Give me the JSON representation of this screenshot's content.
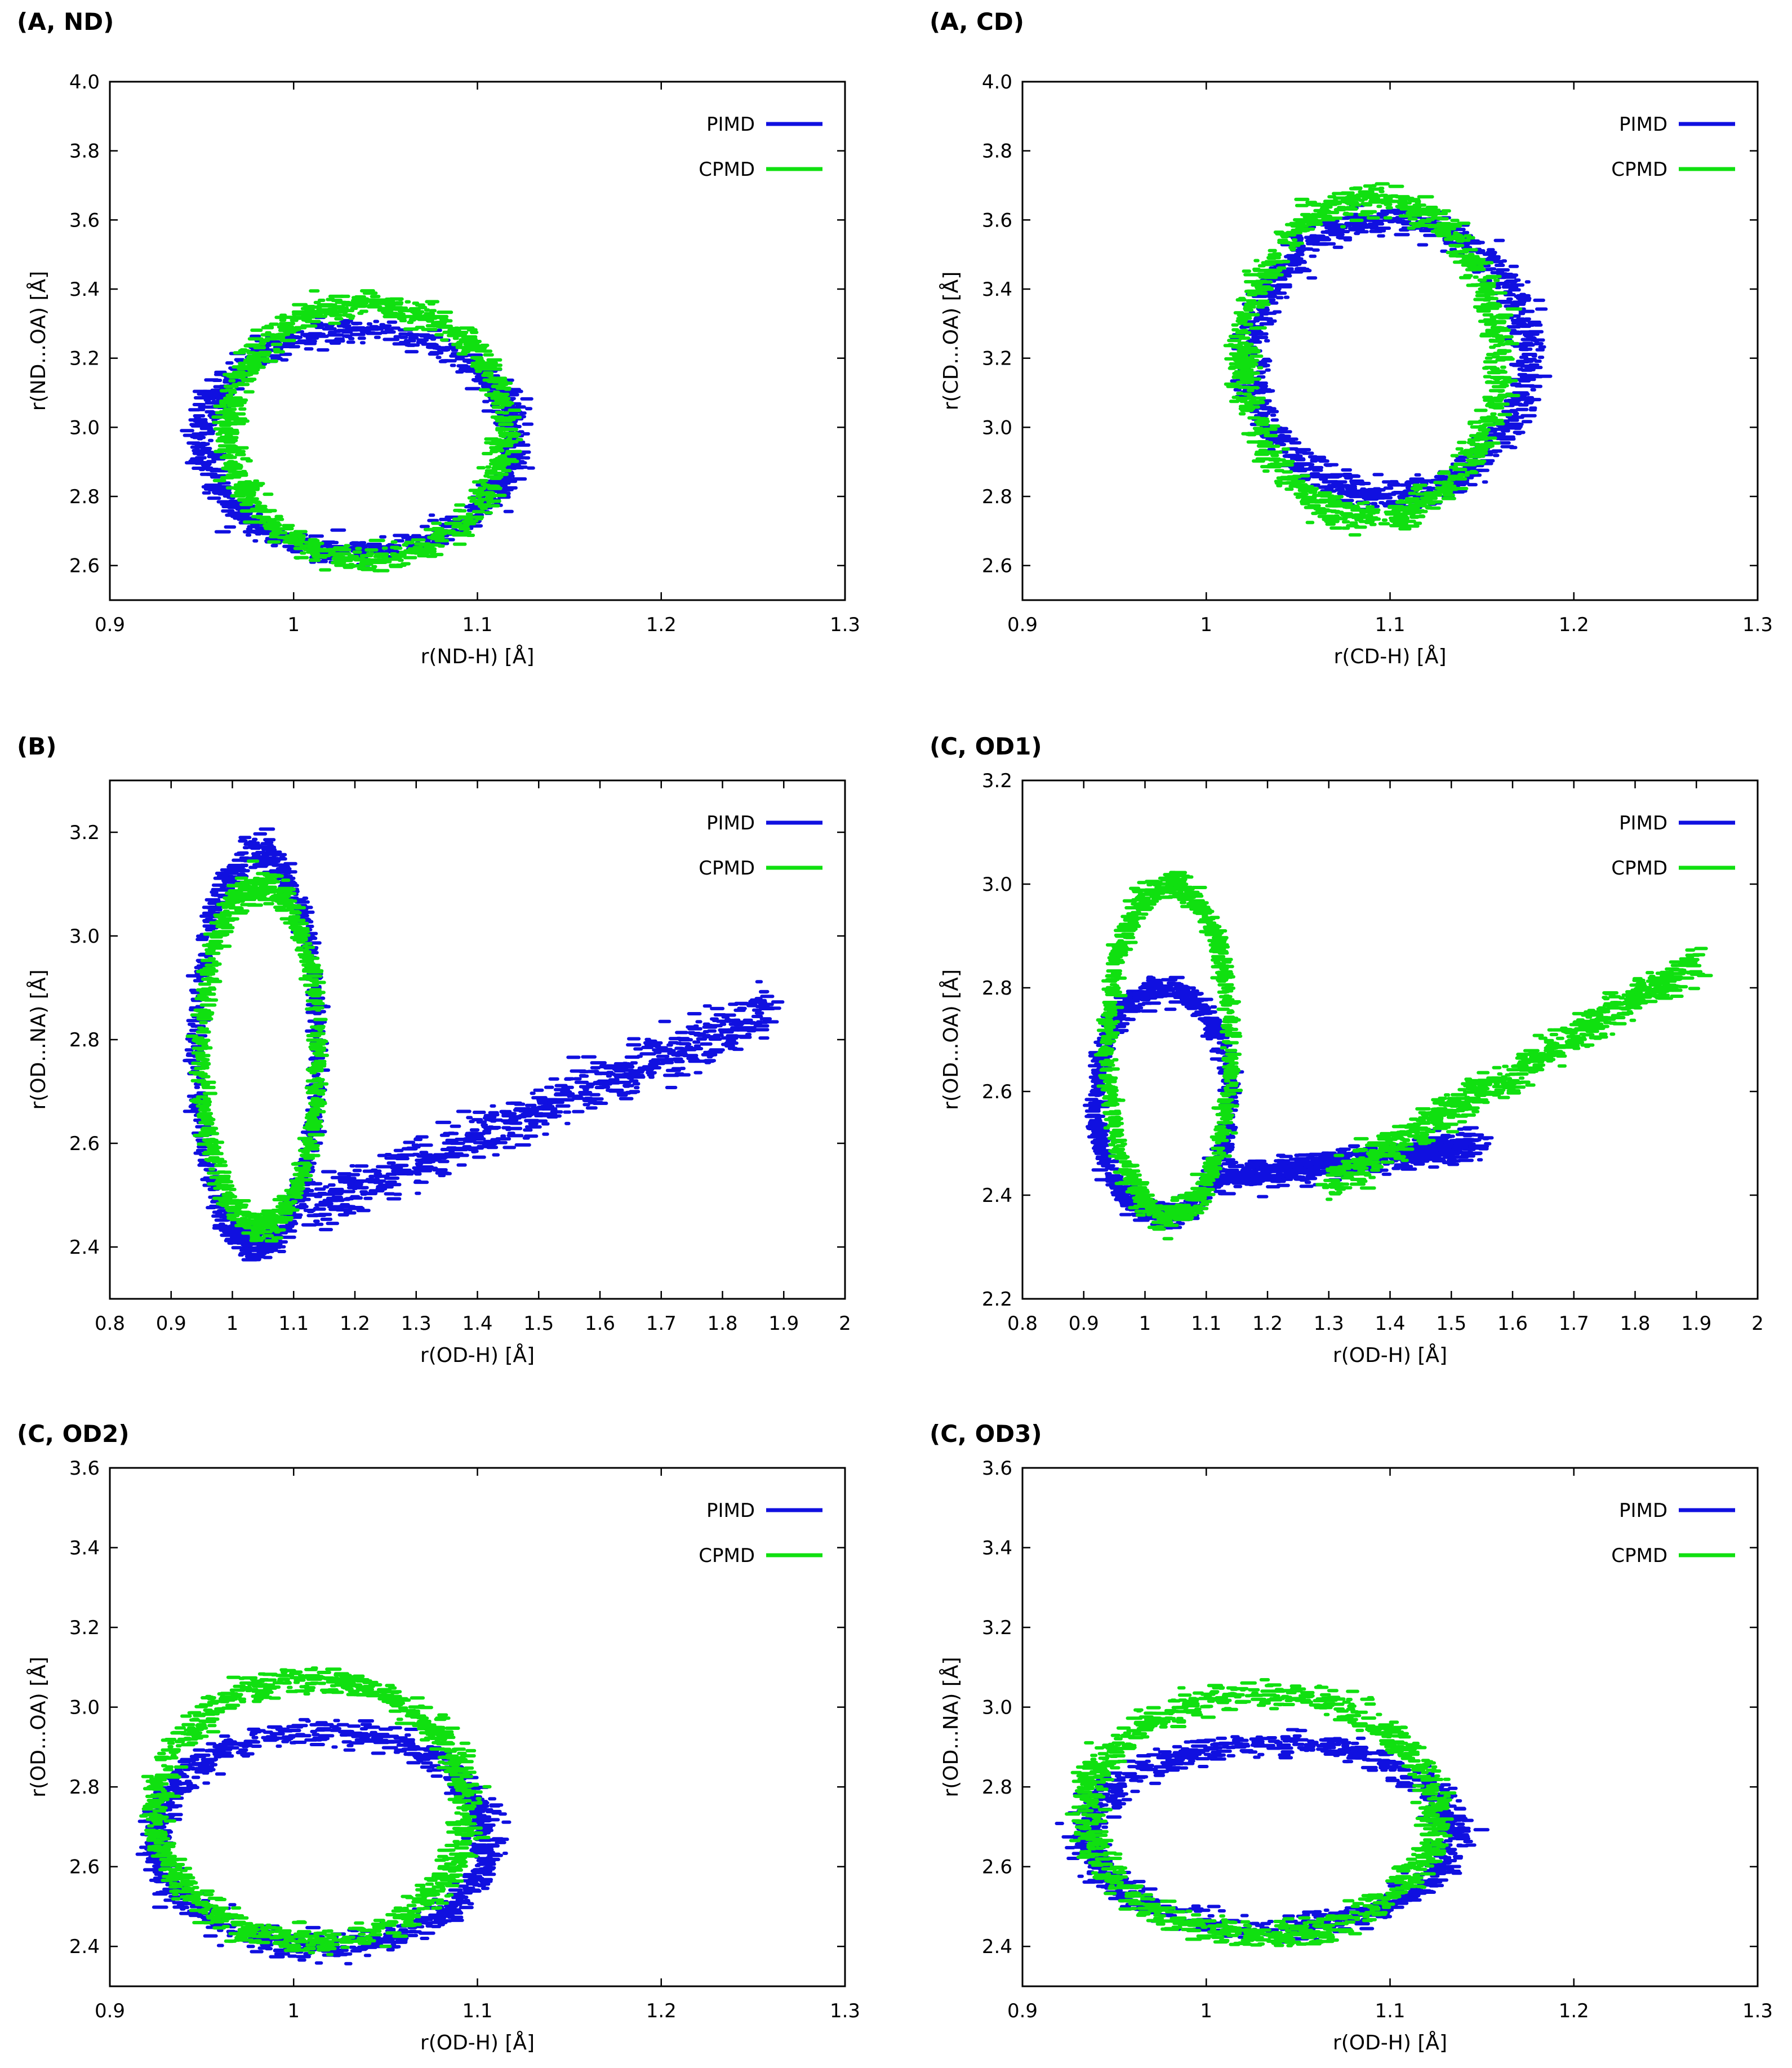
{
  "colors": {
    "pimd": "#1010e0",
    "cpmd": "#10e010",
    "axis": "#000000",
    "background": "#ffffff"
  },
  "chart_data": [
    {
      "panel": "(A, ND)",
      "type": "scatter",
      "xlabel": "r(ND-H) [Å]",
      "ylabel": "r(ND...OA) [Å]",
      "xlim": [
        0.9,
        1.3
      ],
      "ylim": [
        2.5,
        4.0
      ],
      "xticks": [
        "0.9",
        "1",
        "1.1",
        "1.2",
        "1.3"
      ],
      "yticks": [
        "2.6",
        "2.8",
        "3.0",
        "3.2",
        "3.4",
        "3.6",
        "3.8",
        "4.0"
      ],
      "legend": "top-right",
      "series": [
        {
          "name": "PIMD",
          "shape": "ring",
          "center": [
            1.035,
            2.96
          ],
          "radius_x": 0.085,
          "radius_y": 0.32,
          "spread": [
            0.006,
            0.03
          ]
        },
        {
          "name": "CPMD",
          "shape": "ring",
          "center": [
            1.04,
            2.99
          ],
          "radius_x": 0.075,
          "radius_y": 0.37,
          "spread": [
            0.005,
            0.03
          ]
        }
      ]
    },
    {
      "panel": "(A, CD)",
      "type": "scatter",
      "xlabel": "r(CD-H) [Å]",
      "ylabel": "r(CD...OA) [Å]",
      "xlim": [
        0.9,
        1.3
      ],
      "ylim": [
        2.5,
        4.0
      ],
      "xticks": [
        "0.9",
        "1",
        "1.1",
        "1.2",
        "1.3"
      ],
      "yticks": [
        "2.6",
        "2.8",
        "3.0",
        "3.2",
        "3.4",
        "3.6",
        "3.8",
        "4.0"
      ],
      "legend": "top-right",
      "series": [
        {
          "name": "PIMD",
          "shape": "ring",
          "center": [
            1.1,
            3.2
          ],
          "radius_x": 0.075,
          "radius_y": 0.4,
          "spread": [
            0.008,
            0.035
          ]
        },
        {
          "name": "CPMD",
          "shape": "ring",
          "center": [
            1.09,
            3.2
          ],
          "radius_x": 0.07,
          "radius_y": 0.46,
          "spread": [
            0.006,
            0.035
          ]
        }
      ]
    },
    {
      "panel": "(B)",
      "type": "scatter",
      "xlabel": "r(OD-H) [Å]",
      "ylabel": "r(OD...NA) [Å]",
      "xlim": [
        0.8,
        2.0
      ],
      "ylim": [
        2.3,
        3.3
      ],
      "xticks": [
        "0.8",
        "0.9",
        "1",
        "1.1",
        "1.2",
        "1.3",
        "1.4",
        "1.5",
        "1.6",
        "1.7",
        "1.8",
        "1.9",
        "2"
      ],
      "yticks": [
        "2.4",
        "2.6",
        "2.8",
        "3.0",
        "3.2"
      ],
      "legend": "top-right",
      "series": [
        {
          "name": "PIMD",
          "shape": "loop_band",
          "loop": [
            1.04,
            2.78,
            0.1,
            0.38
          ],
          "band": [
            [
              1.12,
              2.47
            ],
            [
              1.88,
              2.86
            ]
          ],
          "band_width": 0.09
        },
        {
          "name": "CPMD",
          "shape": "loop",
          "loop": [
            1.045,
            2.77,
            0.095,
            0.33
          ]
        }
      ]
    },
    {
      "panel": "(C, OD1)",
      "type": "scatter",
      "xlabel": "r(OD-H) [Å]",
      "ylabel": "r(OD...OA) [Å]",
      "xlim": [
        0.8,
        2.0
      ],
      "ylim": [
        2.2,
        3.2
      ],
      "xticks": [
        "0.8",
        "0.9",
        "1",
        "1.1",
        "1.2",
        "1.3",
        "1.4",
        "1.5",
        "1.6",
        "1.7",
        "1.8",
        "1.9",
        "2"
      ],
      "yticks": [
        "2.2",
        "2.4",
        "2.6",
        "2.8",
        "3.0",
        "3.2"
      ],
      "legend": "top-right",
      "series": [
        {
          "name": "PIMD",
          "shape": "loop_band",
          "loop": [
            1.03,
            2.58,
            0.11,
            0.22
          ],
          "band": [
            [
              1.12,
              2.43
            ],
            [
              1.55,
              2.5
            ]
          ],
          "band_width": 0.05
        },
        {
          "name": "CPMD",
          "shape": "loop_band",
          "loop": [
            1.04,
            2.68,
            0.1,
            0.32
          ],
          "band": [
            [
              1.3,
              2.42
            ],
            [
              1.9,
              2.85
            ]
          ],
          "band_width": 0.06
        }
      ]
    },
    {
      "panel": "(C, OD2)",
      "type": "scatter",
      "xlabel": "r(OD-H) [Å]",
      "ylabel": "r(OD...OA) [Å]",
      "xlim": [
        0.9,
        1.3
      ],
      "ylim": [
        2.3,
        3.6
      ],
      "xticks": [
        "0.9",
        "1",
        "1.1",
        "1.2",
        "1.3"
      ],
      "yticks": [
        "2.4",
        "2.6",
        "2.8",
        "3.0",
        "3.2",
        "3.4",
        "3.6"
      ],
      "legend": "top-right",
      "series": [
        {
          "name": "PIMD",
          "shape": "ring",
          "center": [
            1.015,
            2.67
          ],
          "radius_x": 0.09,
          "radius_y": 0.27,
          "spread": [
            0.007,
            0.03
          ]
        },
        {
          "name": "CPMD",
          "shape": "ring",
          "center": [
            1.01,
            2.74
          ],
          "radius_x": 0.085,
          "radius_y": 0.33,
          "spread": [
            0.006,
            0.03
          ]
        }
      ]
    },
    {
      "panel": "(C, OD3)",
      "type": "scatter",
      "xlabel": "r(OD-H) [Å]",
      "ylabel": "r(OD...NA) [Å]",
      "xlim": [
        0.9,
        1.3
      ],
      "ylim": [
        2.3,
        3.6
      ],
      "xticks": [
        "0.9",
        "1",
        "1.1",
        "1.2",
        "1.3"
      ],
      "yticks": [
        "2.4",
        "2.6",
        "2.8",
        "3.0",
        "3.2",
        "3.4",
        "3.6"
      ],
      "legend": "top-right",
      "series": [
        {
          "name": "PIMD",
          "shape": "ring",
          "center": [
            1.035,
            2.68
          ],
          "radius_x": 0.1,
          "radius_y": 0.23,
          "spread": [
            0.008,
            0.028
          ]
        },
        {
          "name": "CPMD",
          "shape": "ring",
          "center": [
            1.03,
            2.73
          ],
          "radius_x": 0.095,
          "radius_y": 0.3,
          "spread": [
            0.007,
            0.03
          ]
        }
      ]
    }
  ]
}
